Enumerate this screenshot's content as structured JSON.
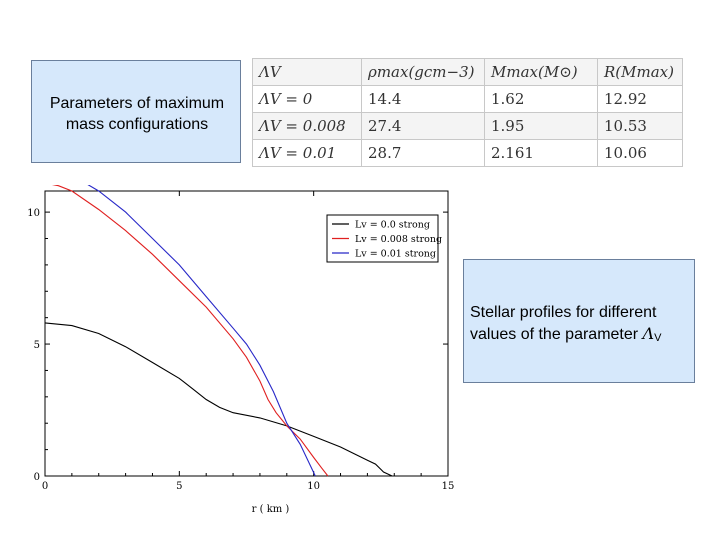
{
  "params_box": {
    "line1": "Parameters of maximum",
    "line2": "mass configurations"
  },
  "table": {
    "headers": [
      "ΛV",
      "ρmax(gcm−3)",
      "Mmax(M⊙)",
      "R(Mmax)"
    ],
    "rows": [
      {
        "lambda": "ΛV = 0",
        "rho": "14.4",
        "mass": "1.62",
        "radius": "12.92"
      },
      {
        "lambda": "ΛV = 0.008",
        "rho": "27.4",
        "mass": "1.95",
        "radius": "10.53"
      },
      {
        "lambda": "ΛV = 0.01",
        "rho": "28.7",
        "mass": "2.161",
        "radius": "10.06"
      }
    ]
  },
  "profiles_box": {
    "line1": "Stellar profiles for different",
    "line2_prefix": "values of the parameter ",
    "symbol": "Λ",
    "subscript": "V"
  },
  "chart_data": {
    "type": "line",
    "title": "",
    "xlabel": "r ( km )",
    "ylabel": "",
    "xlim": [
      0,
      15
    ],
    "ylim": [
      0,
      10.8
    ],
    "xticks": [
      0,
      5,
      10,
      15
    ],
    "yticks": [
      0,
      5,
      10
    ],
    "legend_position": "top-right",
    "series": [
      {
        "name": "Lv = 0.0 strong",
        "color": "#000000",
        "points": [
          [
            0,
            5.8
          ],
          [
            1,
            5.7
          ],
          [
            2,
            5.4
          ],
          [
            3,
            4.9
          ],
          [
            4,
            4.3
          ],
          [
            5,
            3.7
          ],
          [
            5.5,
            3.3
          ],
          [
            6,
            2.9
          ],
          [
            6.5,
            2.6
          ],
          [
            7,
            2.4
          ],
          [
            8,
            2.2
          ],
          [
            9,
            1.9
          ],
          [
            10,
            1.5
          ],
          [
            11,
            1.1
          ],
          [
            12,
            0.6
          ],
          [
            12.3,
            0.45
          ],
          [
            12.6,
            0.15
          ],
          [
            12.92,
            0
          ]
        ]
      },
      {
        "name": "Lv = 0.008 strong",
        "color": "#e02020",
        "points": [
          [
            0,
            11.1
          ],
          [
            0.5,
            11.0
          ],
          [
            1,
            10.8
          ],
          [
            2,
            10.1
          ],
          [
            3,
            9.3
          ],
          [
            4,
            8.4
          ],
          [
            5,
            7.4
          ],
          [
            6,
            6.4
          ],
          [
            7,
            5.2
          ],
          [
            7.5,
            4.5
          ],
          [
            8,
            3.6
          ],
          [
            8.3,
            2.9
          ],
          [
            8.6,
            2.4
          ],
          [
            9,
            1.9
          ],
          [
            9.5,
            1.4
          ],
          [
            10,
            0.7
          ],
          [
            10.3,
            0.3
          ],
          [
            10.53,
            0
          ]
        ]
      },
      {
        "name": "Lv = 0.01 strong",
        "color": "#2828c8",
        "points": [
          [
            0,
            11.6
          ],
          [
            0.5,
            11.55
          ],
          [
            1,
            11.4
          ],
          [
            2,
            10.8
          ],
          [
            3,
            10.0
          ],
          [
            4,
            9.0
          ],
          [
            5,
            8.0
          ],
          [
            6,
            6.8
          ],
          [
            7,
            5.6
          ],
          [
            7.5,
            5.0
          ],
          [
            8,
            4.2
          ],
          [
            8.5,
            3.2
          ],
          [
            9,
            2.0
          ],
          [
            9.5,
            1.2
          ],
          [
            10.06,
            0
          ]
        ]
      }
    ]
  }
}
